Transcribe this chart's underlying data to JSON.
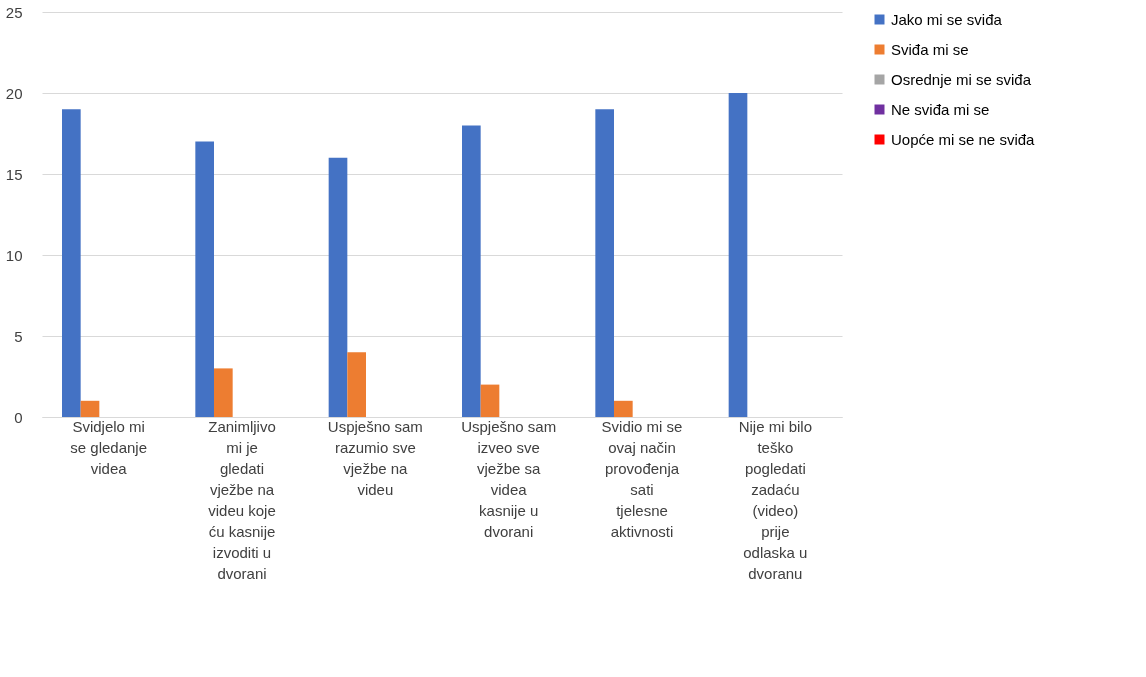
{
  "chart_data": {
    "type": "bar",
    "categories": [
      "Svidjelo mi se gledanje videa",
      "Zanimljivo mi je gledati vježbe na videu koje ću kasnije izvoditi u dvorani",
      "Uspješno sam razumio sve vježbe na videu",
      "Uspješno sam izveo sve vježbe sa videa kasnije u dvorani",
      "Svidio mi se ovaj način provođenja sati tjelesne aktivnosti",
      "Nije mi bilo teško pogledati zadaću (video) prije odlaska u dvoranu"
    ],
    "series": [
      {
        "name": "Jako mi se sviđa",
        "color": "#4472c4",
        "values": [
          19,
          17,
          16,
          18,
          19,
          20
        ]
      },
      {
        "name": "Sviđa mi se",
        "color": "#ed7d31",
        "values": [
          1,
          3,
          4,
          2,
          1,
          0
        ]
      },
      {
        "name": "Osrednje mi se sviđa",
        "color": "#a5a5a5",
        "values": [
          0,
          0,
          0,
          0,
          0,
          0
        ]
      },
      {
        "name": "Ne sviđa mi se",
        "color": "#7030a0",
        "values": [
          0,
          0,
          0,
          0,
          0,
          0
        ]
      },
      {
        "name": "Uopće mi se ne sviđa",
        "color": "#ff0000",
        "values": [
          0,
          0,
          0,
          0,
          0,
          0
        ]
      }
    ],
    "ylim": [
      0,
      25
    ],
    "yticks": [
      0,
      5,
      10,
      15,
      20,
      25
    ],
    "grid": "y",
    "legend": "right"
  }
}
